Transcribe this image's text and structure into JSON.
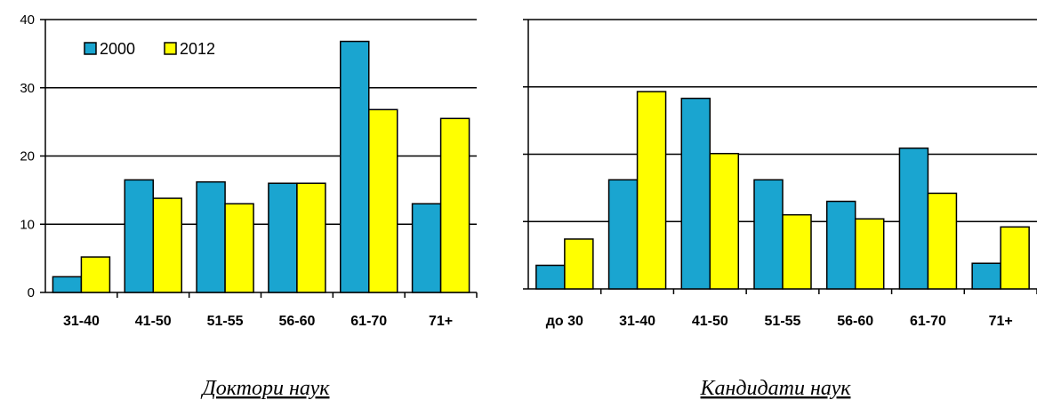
{
  "colors": {
    "series_2000": "#1aa5d0",
    "series_2012": "#ffff00",
    "stroke": "#000000"
  },
  "chart_data": [
    {
      "type": "bar",
      "title": "Доктори наук",
      "categories": [
        "31-40",
        "41-50",
        "51-55",
        "56-60",
        "61-70",
        "71+"
      ],
      "series": [
        {
          "name": "2000",
          "values": [
            2.3,
            16.5,
            16.2,
            16.0,
            36.8,
            13.0
          ]
        },
        {
          "name": "2012",
          "values": [
            5.2,
            13.8,
            13.0,
            16.0,
            26.8,
            25.5
          ]
        }
      ],
      "ylim": [
        0,
        40
      ],
      "yticks": [
        0,
        10,
        20,
        30,
        40
      ],
      "legend": "top-left",
      "grid": true
    },
    {
      "type": "bar",
      "title": "Кандидати наук",
      "categories": [
        "до 30",
        "31-40",
        "41-50",
        "51-55",
        "56-60",
        "61-70",
        "71+"
      ],
      "series": [
        {
          "name": "2000",
          "values": [
            3.5,
            16.2,
            28.3,
            16.2,
            13.0,
            20.9,
            3.8
          ]
        },
        {
          "name": "2012",
          "values": [
            7.4,
            29.3,
            20.1,
            11.0,
            10.4,
            14.2,
            9.2
          ]
        }
      ],
      "ylim": [
        0,
        40
      ],
      "yticks": [
        0,
        10,
        20,
        30,
        40
      ],
      "grid": true
    }
  ]
}
